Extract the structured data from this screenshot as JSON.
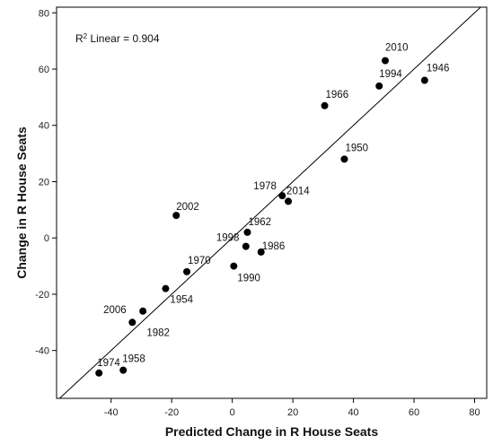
{
  "chart_data": {
    "type": "scatter",
    "title": "",
    "xlabel": "Predicted Change in R House Seats",
    "ylabel": "Change in R House Seats",
    "xlim": [
      -58,
      84
    ],
    "ylim": [
      -57,
      82
    ],
    "x_ticks": [
      -40,
      -20,
      0,
      20,
      40,
      60,
      80
    ],
    "y_ticks": [
      -40,
      -20,
      0,
      20,
      40,
      60,
      80
    ],
    "grid": false,
    "legend": "none",
    "annotation": {
      "base": "R",
      "superscript": "2",
      "text": " Linear = 0.904"
    },
    "fit_line": {
      "slope": 1,
      "intercept": 0
    },
    "points": [
      {
        "label": "2010",
        "x": 50.5,
        "y": 63
      },
      {
        "label": "1994",
        "x": 48.5,
        "y": 54
      },
      {
        "label": "1946",
        "x": 63.5,
        "y": 56
      },
      {
        "label": "1966",
        "x": 30.5,
        "y": 47
      },
      {
        "label": "1950",
        "x": 37,
        "y": 28
      },
      {
        "label": "1978",
        "x": 16.5,
        "y": 15
      },
      {
        "label": "2014",
        "x": 18.5,
        "y": 13
      },
      {
        "label": "2002",
        "x": -18.5,
        "y": 8
      },
      {
        "label": "1962",
        "x": 5,
        "y": 2
      },
      {
        "label": "1998",
        "x": 4.5,
        "y": -3
      },
      {
        "label": "1986",
        "x": 9.5,
        "y": -5
      },
      {
        "label": "1990",
        "x": 0.5,
        "y": -10
      },
      {
        "label": "1970",
        "x": -15,
        "y": -12
      },
      {
        "label": "1954",
        "x": -22,
        "y": -18
      },
      {
        "label": "2006",
        "x": -29.5,
        "y": -26
      },
      {
        "label": "1982",
        "x": -33,
        "y": -30
      },
      {
        "label": "1974",
        "x": -44,
        "y": -48
      },
      {
        "label": "1958",
        "x": -36,
        "y": -47
      }
    ],
    "colors": {
      "points": "#000000",
      "fit_line": "#000000",
      "axes": "#000000",
      "background": "#ffffff"
    }
  }
}
